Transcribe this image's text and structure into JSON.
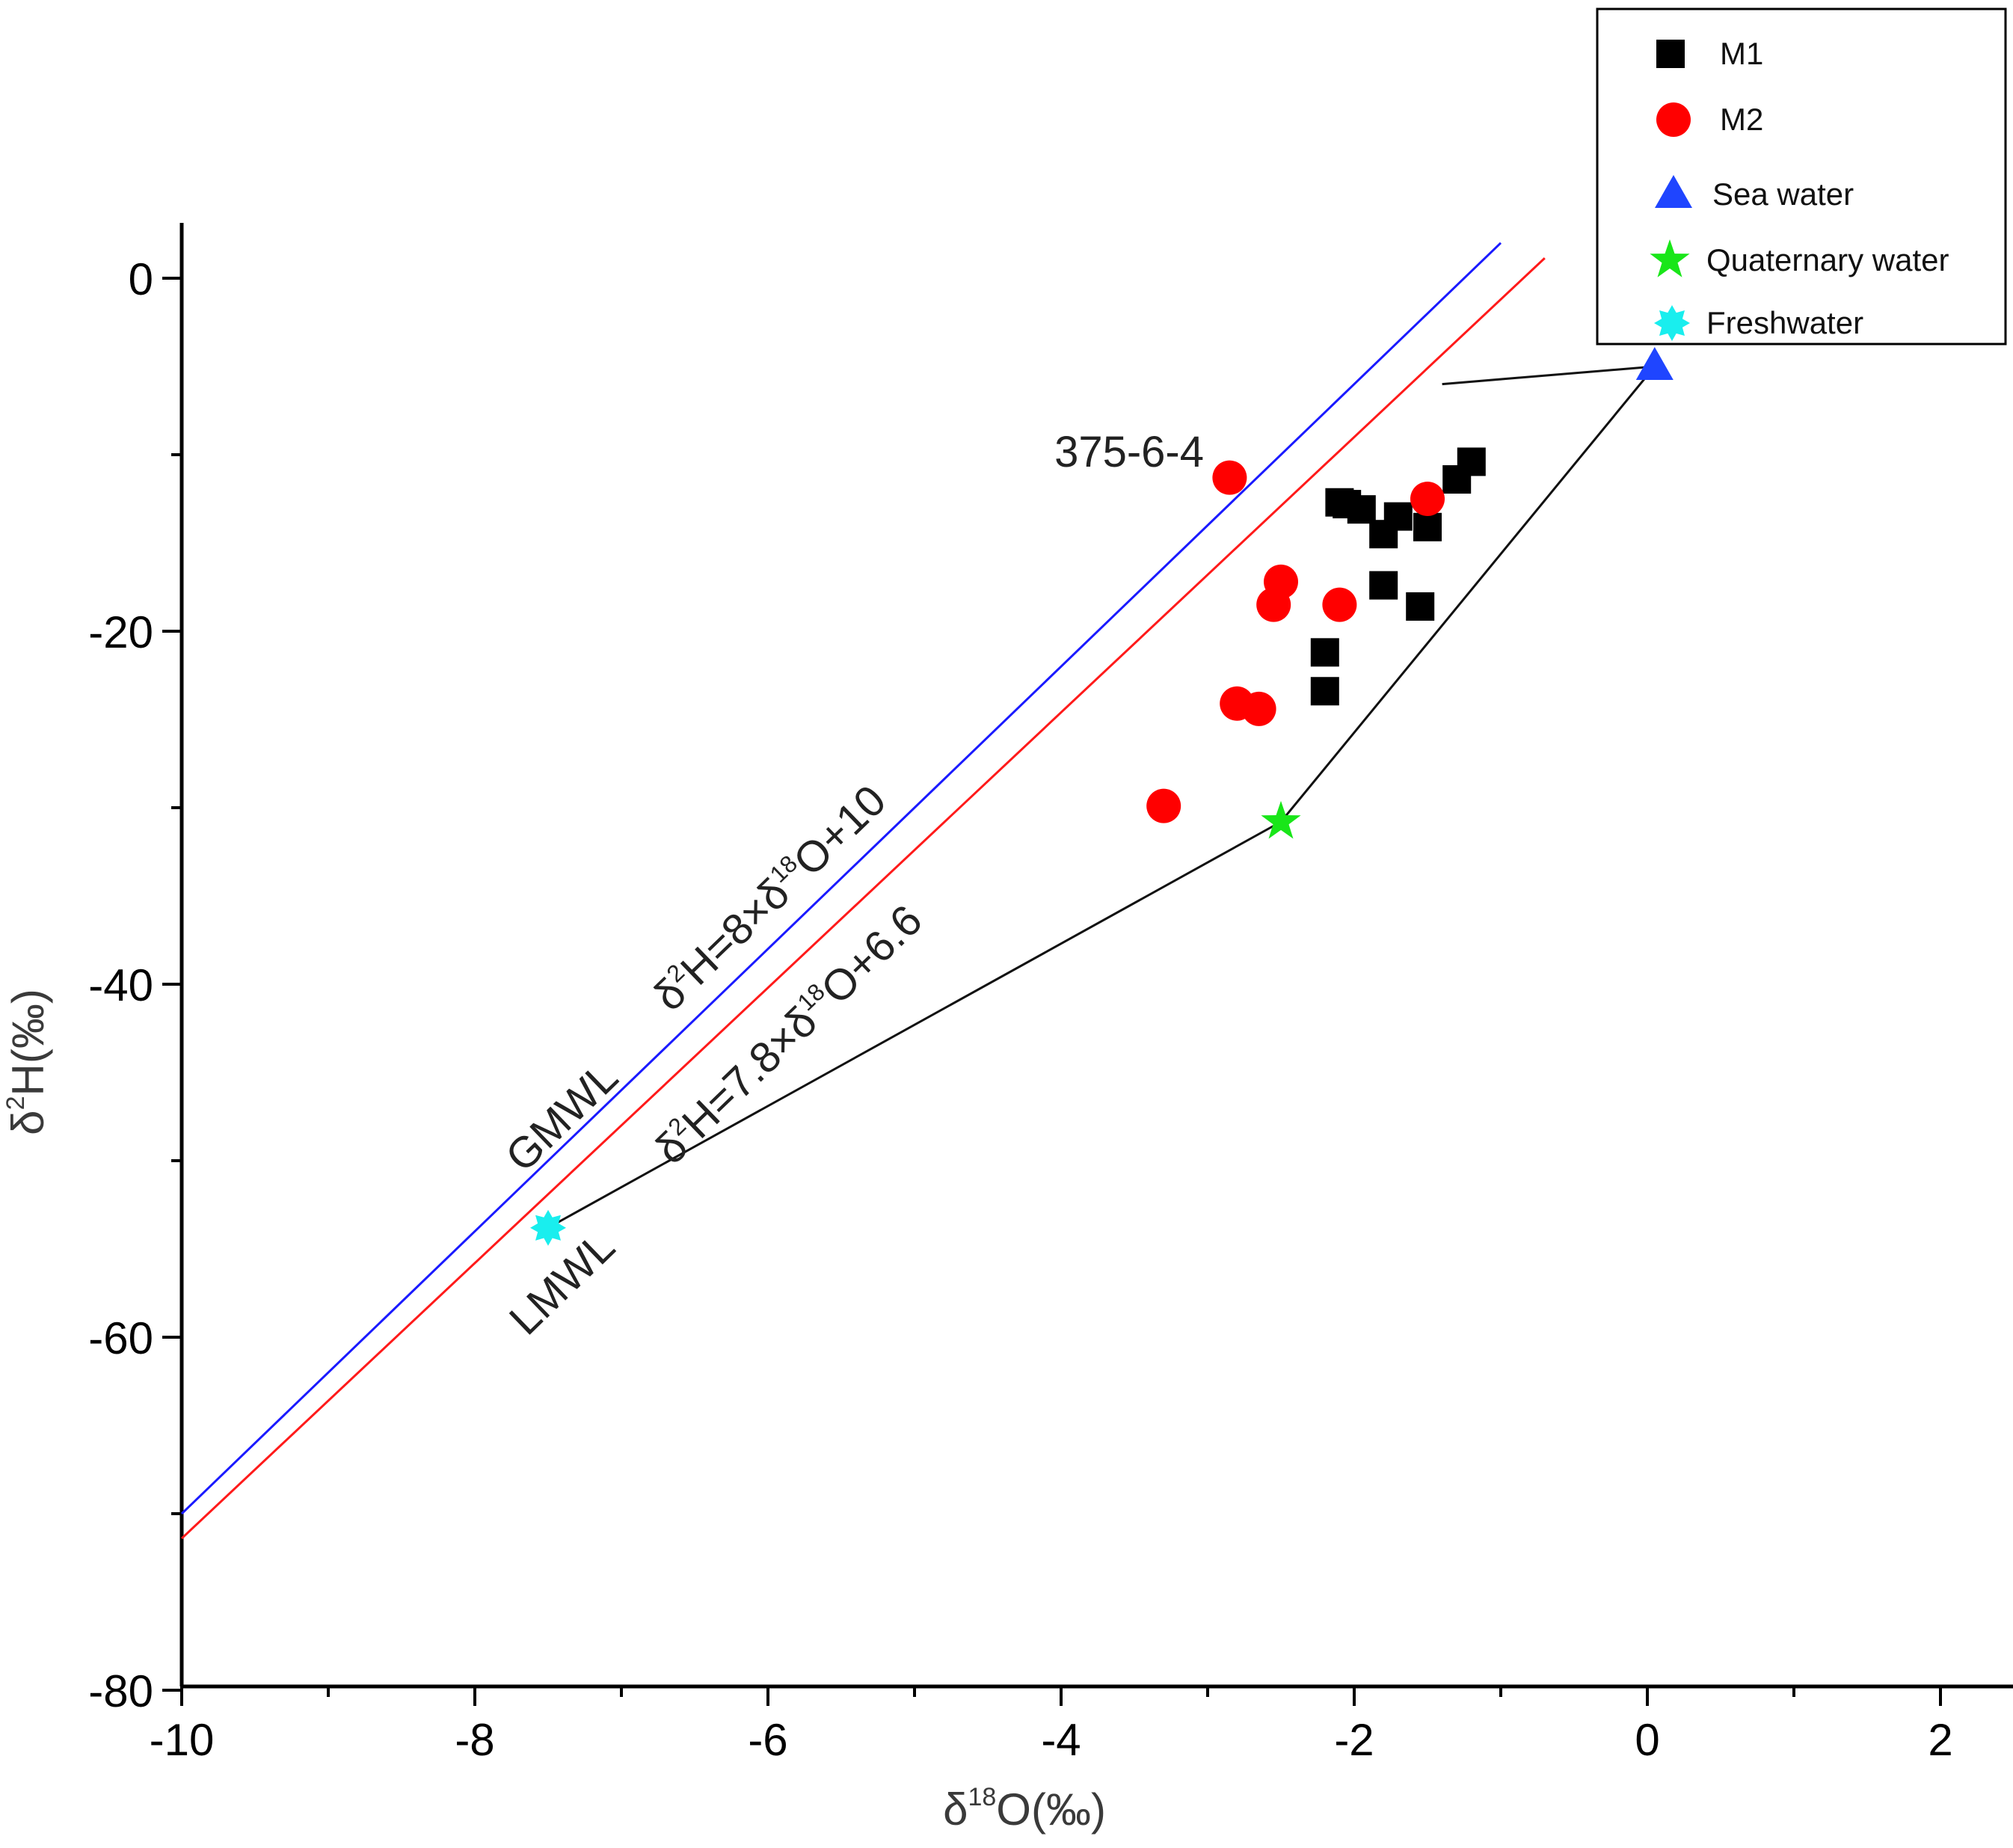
{
  "chart_data": {
    "type": "scatter",
    "xlim": [
      -10,
      2.5
    ],
    "ylim": [
      -80,
      3
    ],
    "xticks": [
      -10,
      -8,
      -6,
      -4,
      -2,
      0,
      2
    ],
    "yticks": [
      0,
      -20,
      -40,
      -60,
      -80
    ],
    "xticks_minor": [
      -9,
      -7,
      -5,
      -3,
      -1,
      1
    ],
    "yticks_minor": [
      -10,
      -30,
      -50,
      -70
    ],
    "xlabel": {
      "prefix": "δ",
      "sup": "18",
      "main": "O(‰)"
    },
    "ylabel": {
      "prefix": "δ",
      "sup": "2",
      "main": "H(‰)"
    },
    "series": [
      {
        "name": "M1",
        "marker": "square",
        "color": "#000000",
        "points": [
          [
            -2.1,
            -12.7
          ],
          [
            -2.05,
            -12.8
          ],
          [
            -1.95,
            -13.1
          ],
          [
            -1.8,
            -14.5
          ],
          [
            -1.7,
            -13.5
          ],
          [
            -1.5,
            -14.1
          ],
          [
            -1.3,
            -11.4
          ],
          [
            -1.2,
            -10.4
          ],
          [
            -1.8,
            -17.4
          ],
          [
            -1.55,
            -18.6
          ],
          [
            -2.2,
            -21.2
          ],
          [
            -2.2,
            -23.4
          ]
        ]
      },
      {
        "name": "M2",
        "marker": "circle",
        "color": "#ff0000",
        "points": [
          [
            -2.85,
            -11.3
          ],
          [
            -1.5,
            -12.5
          ],
          [
            -2.5,
            -17.2
          ],
          [
            -2.55,
            -18.5
          ],
          [
            -2.1,
            -18.5
          ],
          [
            -2.8,
            -24.1
          ],
          [
            -2.65,
            -24.4
          ],
          [
            -3.3,
            -29.9
          ]
        ]
      },
      {
        "name": "Sea water",
        "marker": "triangle",
        "color": "#1f45ff",
        "points": [
          [
            0.05,
            -5
          ]
        ]
      },
      {
        "name": "Quaternary water",
        "marker": "star",
        "color": "#19e619",
        "points": [
          [
            -2.5,
            -30.8
          ]
        ]
      },
      {
        "name": "Freshwater",
        "marker": "burst",
        "color": "#19eeee",
        "points": [
          [
            -7.5,
            -53.8
          ]
        ]
      }
    ],
    "lines": [
      {
        "name": "GMWL",
        "slope": 8,
        "intercept": 10,
        "x_range": [
          -10,
          -1
        ],
        "color": "#1a1aff"
      },
      {
        "name": "LMWL",
        "slope": 7.8,
        "intercept": 6.6,
        "x_range": [
          -10,
          -0.7
        ],
        "color": "#ff1a1a"
      }
    ],
    "mixing_polygon": [
      [
        -7.5,
        -53.8
      ],
      [
        -2.5,
        -30.8
      ],
      [
        0.05,
        -5
      ],
      [
        -1.4,
        -6
      ]
    ],
    "annotations": {
      "sample": {
        "text": "375-6-4",
        "x": -2.85,
        "y": -11.3
      },
      "gmwl": "GMWL",
      "lmwl": "LMWL",
      "gmwl_eq": {
        "a": "δ",
        "b": "2",
        "c": "H=8×δ",
        "d": "18",
        "e": "O+10"
      },
      "lmwl_eq": {
        "a": "δ",
        "b": "2",
        "c": "H=7.8×δ",
        "d": "18",
        "e": "O+6.6"
      }
    },
    "legend": {
      "placement": "top-right",
      "items": [
        "M1",
        "M2",
        "Sea water",
        "Quaternary water",
        "Freshwater"
      ]
    }
  }
}
